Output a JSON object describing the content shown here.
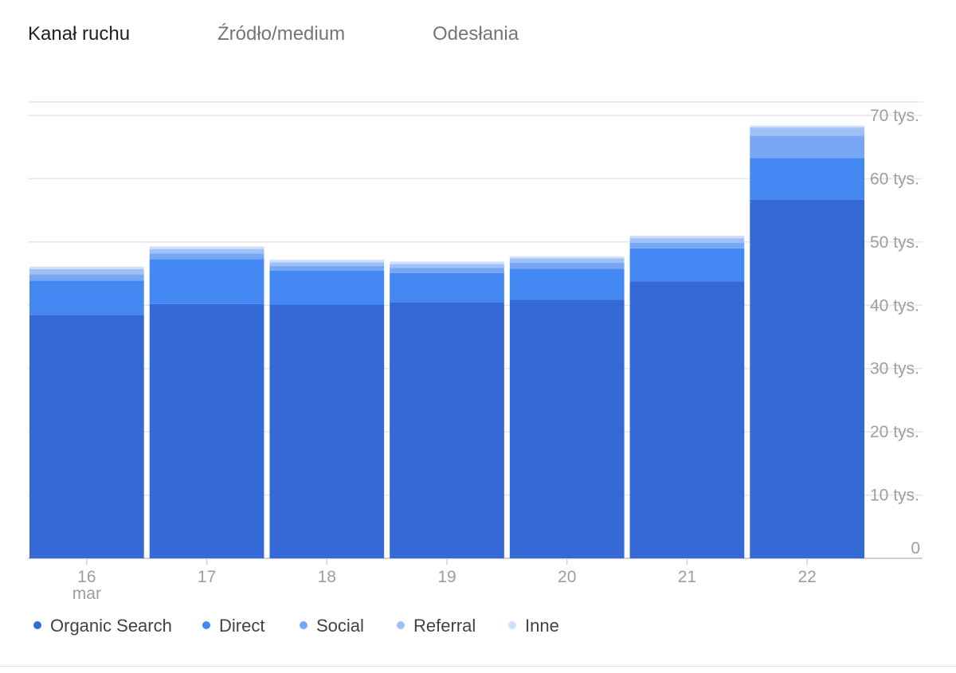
{
  "tabs": [
    {
      "label": "Kanał ruchu",
      "active": true
    },
    {
      "label": "Źródło/medium",
      "active": false
    },
    {
      "label": "Odesłania",
      "active": false
    }
  ],
  "chart_data": {
    "type": "bar",
    "stacked": true,
    "categories": [
      "16",
      "17",
      "18",
      "19",
      "20",
      "21",
      "22"
    ],
    "category_sublabels": [
      "mar",
      "",
      "",
      "",
      "",
      "",
      ""
    ],
    "series": [
      {
        "name": "Organic Search",
        "color": "#356ad6",
        "values": [
          38500,
          40200,
          40100,
          40500,
          40900,
          43800,
          56700
        ]
      },
      {
        "name": "Direct",
        "color": "#4489f3",
        "values": [
          5400,
          7100,
          5400,
          4600,
          4900,
          5200,
          6600
        ]
      },
      {
        "name": "Social",
        "color": "#77a7f4",
        "values": [
          1000,
          900,
          700,
          800,
          900,
          900,
          3500
        ]
      },
      {
        "name": "Referral",
        "color": "#9fc0f6",
        "values": [
          800,
          700,
          600,
          600,
          700,
          700,
          1300
        ]
      },
      {
        "name": "Inne",
        "color": "#cfdefa",
        "values": [
          400,
          400,
          400,
          400,
          300,
          400,
          300
        ]
      }
    ],
    "y_ticks": [
      {
        "value": 0,
        "label": "0"
      },
      {
        "value": 10000,
        "label": "10 tys."
      },
      {
        "value": 20000,
        "label": "20 tys."
      },
      {
        "value": 30000,
        "label": "30 tys."
      },
      {
        "value": 40000,
        "label": "40 tys."
      },
      {
        "value": 50000,
        "label": "50 tys."
      },
      {
        "value": 60000,
        "label": "60 tys."
      },
      {
        "value": 70000,
        "label": "70 tys."
      }
    ],
    "ylim": [
      0,
      70000
    ],
    "y_axis_position": "right",
    "grid": true,
    "legend_position": "bottom-left"
  }
}
